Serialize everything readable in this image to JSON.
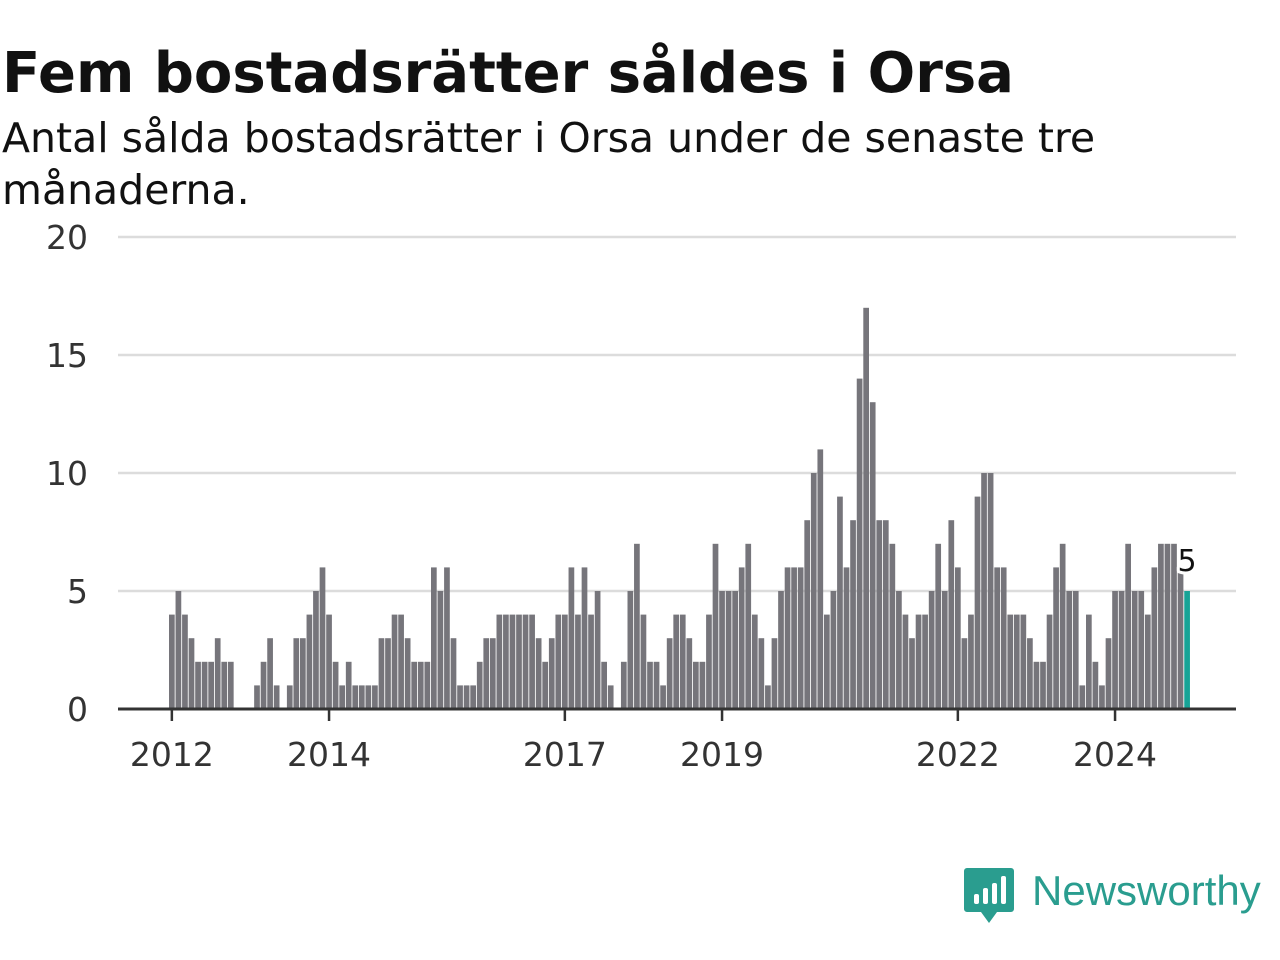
{
  "title": "Fem bostadsrätter såldes i Orsa",
  "subtitle": "Antal sålda bostadsrätter i Orsa under de senaste tre månaderna.",
  "brand": {
    "name": "Newsworthy",
    "icon": "newsworthy-logo-icon",
    "color": "#2a9d8f"
  },
  "colors": {
    "bar": "#76757b",
    "highlight": "#17a396",
    "grid": "#dcdcdc",
    "axis": "#333333"
  },
  "chart_data": {
    "type": "bar",
    "title": "Fem bostadsrätter såldes i Orsa",
    "xlabel": "",
    "ylabel": "",
    "ylim": [
      0,
      20
    ],
    "yticks": [
      0,
      5,
      10,
      15,
      20
    ],
    "grid": true,
    "x_unit": "month",
    "x_start": "2012-01",
    "x_end": "2024-12",
    "xticks": [
      {
        "label": "2012",
        "date": "2012-01"
      },
      {
        "label": "2014",
        "date": "2014-01"
      },
      {
        "label": "2017",
        "date": "2017-01"
      },
      {
        "label": "2019",
        "date": "2019-01"
      },
      {
        "label": "2022",
        "date": "2022-01"
      },
      {
        "label": "2024",
        "date": "2024-01"
      }
    ],
    "values": [
      4,
      5,
      4,
      3,
      2,
      2,
      2,
      3,
      2,
      2,
      0,
      0,
      0,
      1,
      2,
      3,
      1,
      0,
      1,
      3,
      3,
      4,
      5,
      6,
      4,
      2,
      1,
      2,
      1,
      1,
      1,
      1,
      3,
      3,
      4,
      4,
      3,
      2,
      2,
      2,
      6,
      5,
      6,
      3,
      1,
      1,
      1,
      2,
      3,
      3,
      4,
      4,
      4,
      4,
      4,
      4,
      3,
      2,
      3,
      4,
      4,
      6,
      4,
      6,
      4,
      5,
      2,
      1,
      0,
      2,
      5,
      7,
      4,
      2,
      2,
      1,
      3,
      4,
      4,
      3,
      2,
      2,
      4,
      7,
      5,
      5,
      5,
      6,
      7,
      4,
      3,
      1,
      3,
      5,
      6,
      6,
      6,
      8,
      10,
      11,
      4,
      5,
      9,
      6,
      8,
      14,
      17,
      13,
      8,
      8,
      7,
      5,
      4,
      3,
      4,
      4,
      5,
      7,
      5,
      8,
      6,
      3,
      4,
      9,
      10,
      10,
      6,
      6,
      4,
      4,
      4,
      3,
      2,
      2,
      4,
      6,
      7,
      5,
      5,
      1,
      4,
      2,
      1,
      3,
      5,
      5,
      7,
      5,
      5,
      4,
      6,
      7,
      7,
      7,
      6,
      5
    ],
    "highlight": {
      "date": "2024-12",
      "value": 5,
      "label": "5"
    }
  }
}
